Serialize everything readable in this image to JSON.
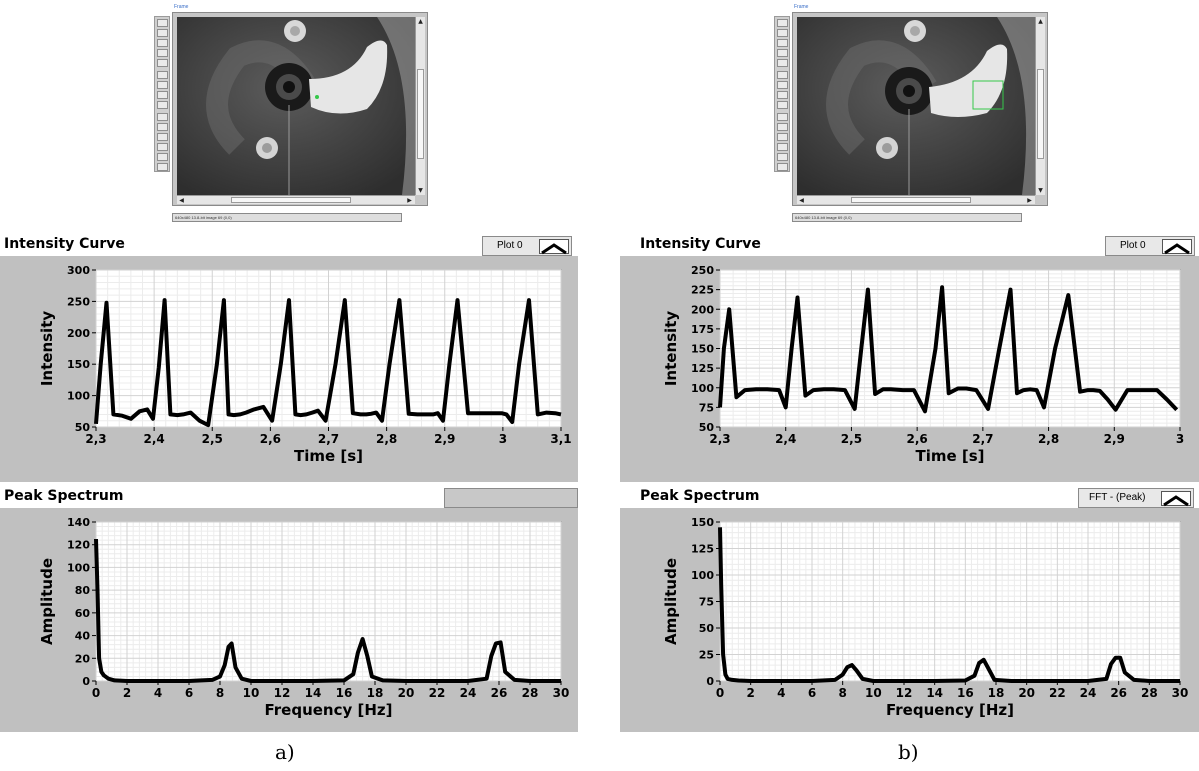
{
  "figure": {
    "panels": [
      {
        "id": "a",
        "caption": "a)",
        "viewer": {
          "label": "Frame",
          "status": "640x480 13.8-bit image 69   (0,0)"
        },
        "intensity": {
          "title": "Intensity Curve",
          "legend": "Plot 0"
        },
        "spectrum": {
          "title": "Peak Spectrum",
          "legend": ""
        }
      },
      {
        "id": "b",
        "caption": "b)",
        "viewer": {
          "label": "Frame",
          "status": "640x480 13.8-bit image 69   (0,0)"
        },
        "intensity": {
          "title": "Intensity Curve",
          "legend": "Plot 0"
        },
        "spectrum": {
          "title": "Peak Spectrum",
          "legend": "FFT - (Peak)"
        }
      }
    ]
  },
  "chart_data": [
    {
      "type": "line",
      "title": "Intensity Curve",
      "xlabel": "Time [s]",
      "ylabel": "Intensity",
      "xlim": [
        2.3,
        3.1
      ],
      "ylim": [
        50,
        300
      ],
      "xticks": [
        "2,3",
        "2,4",
        "2,5",
        "2,6",
        "2,7",
        "2,8",
        "2,9",
        "3",
        "3,1"
      ],
      "yticks": [
        "50",
        "100",
        "150",
        "200",
        "250",
        "300"
      ],
      "grid": true,
      "series": [
        {
          "name": "Plot 0",
          "x": [
            2.3,
            2.308,
            2.318,
            2.33,
            2.345,
            2.36,
            2.375,
            2.388,
            2.398,
            2.408,
            2.418,
            2.428,
            2.44,
            2.45,
            2.463,
            2.478,
            2.493,
            2.508,
            2.52,
            2.528,
            2.537,
            2.548,
            2.558,
            2.572,
            2.588,
            2.603,
            2.618,
            2.632,
            2.643,
            2.652,
            2.662,
            2.672,
            2.682,
            2.695,
            2.712,
            2.728,
            2.742,
            2.755,
            2.765,
            2.773,
            2.782,
            2.792,
            2.805,
            2.822,
            2.838,
            2.853,
            2.868,
            2.88,
            2.888,
            2.897,
            2.908,
            2.922,
            2.94,
            2.958,
            2.975,
            2.99,
            2.998,
            3.006,
            3.016,
            3.028,
            3.045,
            3.06,
            3.075,
            3.09,
            3.1
          ],
          "y": [
            55,
            150,
            248,
            70,
            68,
            63,
            75,
            78,
            63,
            145,
            252,
            70,
            69,
            70,
            73,
            60,
            53,
            150,
            252,
            70,
            69,
            70,
            73,
            78,
            82,
            60,
            150,
            252,
            70,
            69,
            70,
            73,
            76,
            60,
            150,
            252,
            72,
            70,
            70,
            71,
            73,
            60,
            150,
            252,
            71,
            70,
            70,
            70,
            72,
            60,
            150,
            252,
            72,
            72,
            72,
            72,
            72,
            70,
            58,
            150,
            252,
            70,
            73,
            72,
            70
          ]
        }
      ]
    },
    {
      "type": "line",
      "title": "Peak Spectrum",
      "xlabel": "Frequency [Hz]",
      "ylabel": "Amplitude",
      "xlim": [
        0,
        30
      ],
      "ylim": [
        0,
        140
      ],
      "xticks": [
        "0",
        "2",
        "4",
        "6",
        "8",
        "10",
        "12",
        "14",
        "16",
        "18",
        "20",
        "22",
        "24",
        "26",
        "28",
        "30"
      ],
      "yticks": [
        "0",
        "20",
        "40",
        "60",
        "80",
        "100",
        "120",
        "140"
      ],
      "grid": true,
      "series": [
        {
          "name": "",
          "x": [
            0,
            0.1,
            0.2,
            0.35,
            0.5,
            0.8,
            1.2,
            2,
            4,
            6,
            7.5,
            8.0,
            8.3,
            8.55,
            8.75,
            9.0,
            9.4,
            10,
            12,
            14,
            16,
            16.6,
            16.9,
            17.2,
            17.5,
            17.8,
            18.5,
            20,
            22,
            24,
            25.2,
            25.5,
            25.8,
            26.1,
            26.4,
            27,
            28,
            30
          ],
          "y": [
            125,
            80,
            20,
            8,
            5,
            2,
            0.5,
            0,
            0,
            0,
            1,
            4,
            14,
            30,
            33,
            12,
            2,
            0,
            0,
            0,
            0.5,
            6,
            25,
            37,
            22,
            4,
            0.5,
            0,
            0,
            0,
            2,
            22,
            33,
            34,
            8,
            1,
            0,
            0
          ]
        }
      ]
    },
    {
      "type": "line",
      "title": "Intensity Curve",
      "xlabel": "Time [s]",
      "ylabel": "Intensity",
      "xlim": [
        2.3,
        3.0
      ],
      "ylim": [
        50,
        250
      ],
      "xticks": [
        "2,3",
        "2,4",
        "2,5",
        "2,6",
        "2,7",
        "2,8",
        "2,9",
        "3"
      ],
      "yticks": [
        "50",
        "75",
        "100",
        "125",
        "150",
        "175",
        "200",
        "225",
        "250"
      ],
      "grid": true,
      "series": [
        {
          "name": "Plot 0",
          "x": [
            2.3,
            2.306,
            2.314,
            2.325,
            2.338,
            2.355,
            2.372,
            2.39,
            2.4,
            2.409,
            2.418,
            2.43,
            2.442,
            2.458,
            2.473,
            2.49,
            2.505,
            2.515,
            2.525,
            2.536,
            2.548,
            2.56,
            2.578,
            2.595,
            2.612,
            2.628,
            2.638,
            2.648,
            2.662,
            2.675,
            2.69,
            2.708,
            2.725,
            2.742,
            2.752,
            2.762,
            2.772,
            2.782,
            2.793,
            2.81,
            2.83,
            2.848,
            2.86,
            2.868,
            2.878,
            2.89,
            2.902,
            2.92,
            2.945,
            2.965,
            2.98,
            2.995
          ],
          "y": [
            75,
            150,
            200,
            88,
            97,
            98,
            98,
            97,
            75,
            150,
            215,
            90,
            97,
            98,
            98,
            97,
            73,
            150,
            225,
            92,
            98,
            98,
            97,
            97,
            70,
            150,
            228,
            93,
            99,
            99,
            97,
            73,
            150,
            225,
            93,
            97,
            98,
            97,
            75,
            150,
            218,
            95,
            97,
            97,
            96,
            85,
            72,
            97,
            97,
            97,
            85,
            72
          ]
        }
      ]
    },
    {
      "type": "line",
      "title": "Peak Spectrum",
      "xlabel": "Frequency [Hz]",
      "ylabel": "Amplitude",
      "xlim": [
        0,
        30
      ],
      "ylim": [
        0,
        150
      ],
      "xticks": [
        "0",
        "2",
        "4",
        "6",
        "8",
        "10",
        "12",
        "14",
        "16",
        "18",
        "20",
        "22",
        "24",
        "26",
        "28",
        "30"
      ],
      "yticks": [
        "0",
        "25",
        "50",
        "75",
        "100",
        "125",
        "150"
      ],
      "grid": true,
      "series": [
        {
          "name": "FFT - (Peak)",
          "x": [
            0,
            0.08,
            0.2,
            0.35,
            0.5,
            0.8,
            1.2,
            2,
            4,
            6,
            7.5,
            8.0,
            8.3,
            8.6,
            8.9,
            9.3,
            10,
            12,
            14,
            16,
            16.6,
            16.9,
            17.2,
            17.5,
            17.9,
            19,
            20,
            22,
            24,
            25.2,
            25.5,
            25.8,
            26.1,
            26.4,
            27,
            28,
            30
          ],
          "y": [
            145,
            90,
            25,
            6,
            2,
            1,
            0.5,
            0,
            0,
            0,
            1,
            6,
            13,
            15,
            10,
            2,
            0,
            0,
            0,
            0.5,
            5,
            17,
            20,
            12,
            1,
            0,
            0,
            0,
            0,
            2,
            16,
            22,
            22,
            8,
            1,
            0,
            0
          ]
        }
      ]
    }
  ]
}
